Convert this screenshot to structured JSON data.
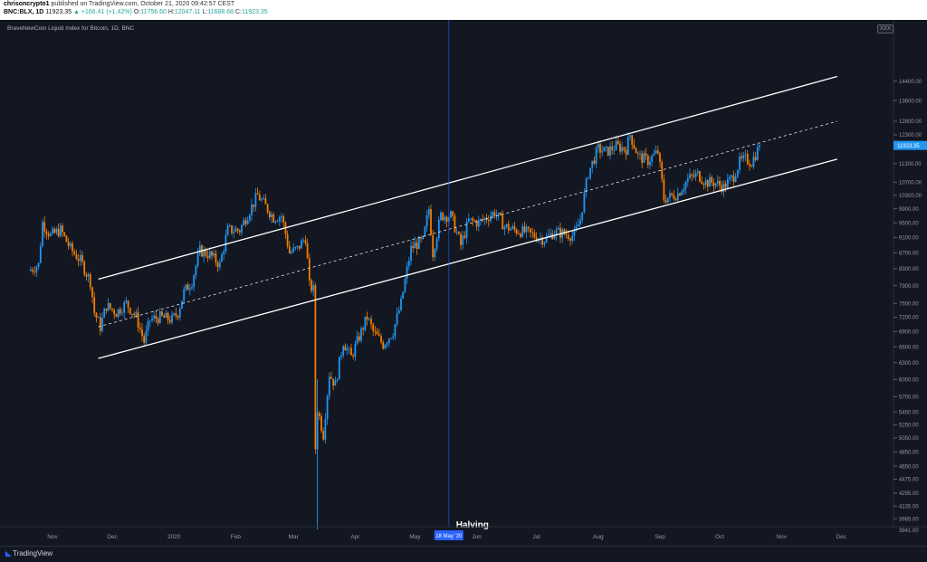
{
  "header": {
    "publisher": "chrisoncrypto1",
    "published_text": "published on TradingView.com, October 21, 2020 09:42:57 CEST",
    "symbol": "BNC:BLX, 1D",
    "last": "11923.35",
    "change": "▲ +166.41 (+1.42%)",
    "o_label": "O:",
    "o_value": "11756.60",
    "h_label": "H:",
    "h_value": "12047.11",
    "l_label": "L:",
    "l_value": "11688.68",
    "c_label": "C:",
    "c_value": "11923.35"
  },
  "chart_title": "BraveNewCoin Liquid Index for Bitcoin, 1D, BNC",
  "expand_label": "XXX",
  "footer": {
    "brand": "TradingView"
  },
  "colors": {
    "up": "#2196f3",
    "down": "#f57c00",
    "background": "#131722",
    "channel": "#ffffff",
    "price_tag": "#2196f3"
  },
  "chart_data": {
    "type": "candlestick",
    "title": "BraveNewCoin Liquid Index for Bitcoin, 1D, BNC",
    "y_scale": "log",
    "ylim": [
      3841,
      16000
    ],
    "x_ticks": [
      {
        "label": "Nov",
        "date": "2019-11-01"
      },
      {
        "label": "Dec",
        "date": "2019-12-01"
      },
      {
        "label": "2020",
        "date": "2020-01-01"
      },
      {
        "label": "Feb",
        "date": "2020-02-01"
      },
      {
        "label": "Mar",
        "date": "2020-03-01"
      },
      {
        "label": "Apr",
        "date": "2020-04-01"
      },
      {
        "label": "May",
        "date": "2020-05-01"
      },
      {
        "label": "Jun",
        "date": "2020-06-01"
      },
      {
        "label": "Jul",
        "date": "2020-07-01"
      },
      {
        "label": "Aug",
        "date": "2020-08-01"
      },
      {
        "label": "Sep",
        "date": "2020-09-01"
      },
      {
        "label": "Oct",
        "date": "2020-10-01"
      },
      {
        "label": "Nov",
        "date": "2020-11-01"
      },
      {
        "label": "Dec",
        "date": "2020-12-01"
      }
    ],
    "y_ticks": [
      "14400.00",
      "13600.00",
      "12800.00",
      "12300.00",
      "11300.00",
      "10700.00",
      "10300.00",
      "9900.00",
      "9500.00",
      "9100.00",
      "8700.00",
      "8300.00",
      "7900.00",
      "7500.00",
      "7200.00",
      "6900.00",
      "6600.00",
      "6300.00",
      "6000.00",
      "5700.00",
      "5450.00",
      "5250.00",
      "5050.00",
      "4850.00",
      "4650.00",
      "4475.00",
      "4295.00",
      "4135.00",
      "3985.00",
      "3841.00"
    ],
    "last_price_label": "11923.35",
    "last_price": 11923.35,
    "vertical_marker": {
      "date": "2020-05-18",
      "label": "18 May '20",
      "annotation": "Halving"
    },
    "channel": {
      "upper": [
        {
          "date": "2019-11-24",
          "y": 8050
        },
        {
          "date": "2020-11-29",
          "y": 14600
        }
      ],
      "middle": [
        {
          "date": "2019-11-24",
          "y": 7000
        },
        {
          "date": "2020-11-29",
          "y": 12800
        }
      ],
      "lower": [
        {
          "date": "2019-11-24",
          "y": 6380
        },
        {
          "date": "2020-11-29",
          "y": 11450
        }
      ]
    },
    "close_series": [
      [
        "2019-10-20",
        8250
      ],
      [
        "2019-10-25",
        8400
      ],
      [
        "2019-10-27",
        9500
      ],
      [
        "2019-10-31",
        9150
      ],
      [
        "2019-11-05",
        9300
      ],
      [
        "2019-11-10",
        8800
      ],
      [
        "2019-11-15",
        8500
      ],
      [
        "2019-11-20",
        8000
      ],
      [
        "2019-11-22",
        7300
      ],
      [
        "2019-11-25",
        7000
      ],
      [
        "2019-11-28",
        7450
      ],
      [
        "2019-12-03",
        7300
      ],
      [
        "2019-12-08",
        7500
      ],
      [
        "2019-12-13",
        7200
      ],
      [
        "2019-12-17",
        6700
      ],
      [
        "2019-12-20",
        7150
      ],
      [
        "2019-12-25",
        7200
      ],
      [
        "2019-12-31",
        7150
      ],
      [
        "2020-01-03",
        7300
      ],
      [
        "2020-01-06",
        7750
      ],
      [
        "2020-01-10",
        8000
      ],
      [
        "2020-01-14",
        8750
      ],
      [
        "2020-01-19",
        8650
      ],
      [
        "2020-01-24",
        8400
      ],
      [
        "2020-01-28",
        9300
      ],
      [
        "2020-02-03",
        9300
      ],
      [
        "2020-02-08",
        9850
      ],
      [
        "2020-02-12",
        10300
      ],
      [
        "2020-02-15",
        10050
      ],
      [
        "2020-02-20",
        9650
      ],
      [
        "2020-02-24",
        9700
      ],
      [
        "2020-02-28",
        8700
      ],
      [
        "2020-03-03",
        8800
      ],
      [
        "2020-03-07",
        9100
      ],
      [
        "2020-03-09",
        7900
      ],
      [
        "2020-03-11",
        7800
      ],
      [
        "2020-03-12",
        4900
      ],
      [
        "2020-03-13",
        5500
      ],
      [
        "2020-03-16",
        5100
      ],
      [
        "2020-03-19",
        6100
      ],
      [
        "2020-03-22",
        5900
      ],
      [
        "2020-03-26",
        6700
      ],
      [
        "2020-03-30",
        6400
      ],
      [
        "2020-04-03",
        6800
      ],
      [
        "2020-04-07",
        7200
      ],
      [
        "2020-04-10",
        6900
      ],
      [
        "2020-04-15",
        6650
      ],
      [
        "2020-04-20",
        6900
      ],
      [
        "2020-04-24",
        7500
      ],
      [
        "2020-04-29",
        8800
      ],
      [
        "2020-05-01",
        8900
      ],
      [
        "2020-05-05",
        9000
      ],
      [
        "2020-05-08",
        9900
      ],
      [
        "2020-05-10",
        8700
      ],
      [
        "2020-05-14",
        9700
      ],
      [
        "2020-05-19",
        9700
      ],
      [
        "2020-05-24",
        8900
      ],
      [
        "2020-05-28",
        9550
      ],
      [
        "2020-06-02",
        9500
      ],
      [
        "2020-06-06",
        9650
      ],
      [
        "2020-06-10",
        9800
      ],
      [
        "2020-06-15",
        9400
      ],
      [
        "2020-06-20",
        9300
      ],
      [
        "2020-06-25",
        9250
      ],
      [
        "2020-06-30",
        9150
      ],
      [
        "2020-07-05",
        9050
      ],
      [
        "2020-07-10",
        9250
      ],
      [
        "2020-07-15",
        9200
      ],
      [
        "2020-07-20",
        9150
      ],
      [
        "2020-07-23",
        9600
      ],
      [
        "2020-07-27",
        11000
      ],
      [
        "2020-08-01",
        11800
      ],
      [
        "2020-08-05",
        11700
      ],
      [
        "2020-08-10",
        11900
      ],
      [
        "2020-08-15",
        11800
      ],
      [
        "2020-08-17",
        12300
      ],
      [
        "2020-08-21",
        11550
      ],
      [
        "2020-08-26",
        11400
      ],
      [
        "2020-08-31",
        11700
      ],
      [
        "2020-09-03",
        10200
      ],
      [
        "2020-09-06",
        10250
      ],
      [
        "2020-09-10",
        10350
      ],
      [
        "2020-09-15",
        10800
      ],
      [
        "2020-09-20",
        10950
      ],
      [
        "2020-09-24",
        10700
      ],
      [
        "2020-09-28",
        10700
      ],
      [
        "2020-10-03",
        10550
      ],
      [
        "2020-10-08",
        10900
      ],
      [
        "2020-10-11",
        11350
      ],
      [
        "2020-10-14",
        11450
      ],
      [
        "2020-10-17",
        11350
      ],
      [
        "2020-10-20",
        11750
      ],
      [
        "2020-10-21",
        11923.35
      ]
    ]
  }
}
